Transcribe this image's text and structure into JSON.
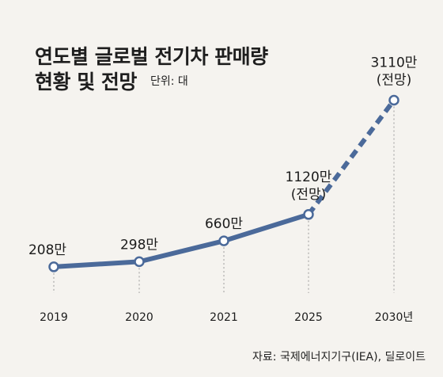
{
  "chart_data": {
    "type": "line",
    "title_line1": "연도별 글로벌 전기차 판매량",
    "title_line2": "현황 및 전망",
    "unit_label": "단위: 대",
    "x_suffix": "년",
    "source": "자료: 국제에너지기구(IEA), 딜로이트",
    "categories": [
      "2019",
      "2020",
      "2021",
      "2025",
      "2030"
    ],
    "series": [
      {
        "values": [
          2080000,
          2980000,
          6600000,
          11200000,
          31100000
        ]
      }
    ],
    "value_labels": [
      "208만",
      "298만",
      "660만",
      "1120만",
      "3110만"
    ],
    "projection_note": "(전망)",
    "projection_from_index": 3,
    "projected_indices": [
      3,
      4
    ],
    "ylim": [
      0,
      32000000
    ],
    "grid": false,
    "colors": {
      "line": "#4b6a9a",
      "marker_fill": "#ffffff",
      "guide": "#9a9a9a",
      "background": "#f5f3ef"
    }
  }
}
